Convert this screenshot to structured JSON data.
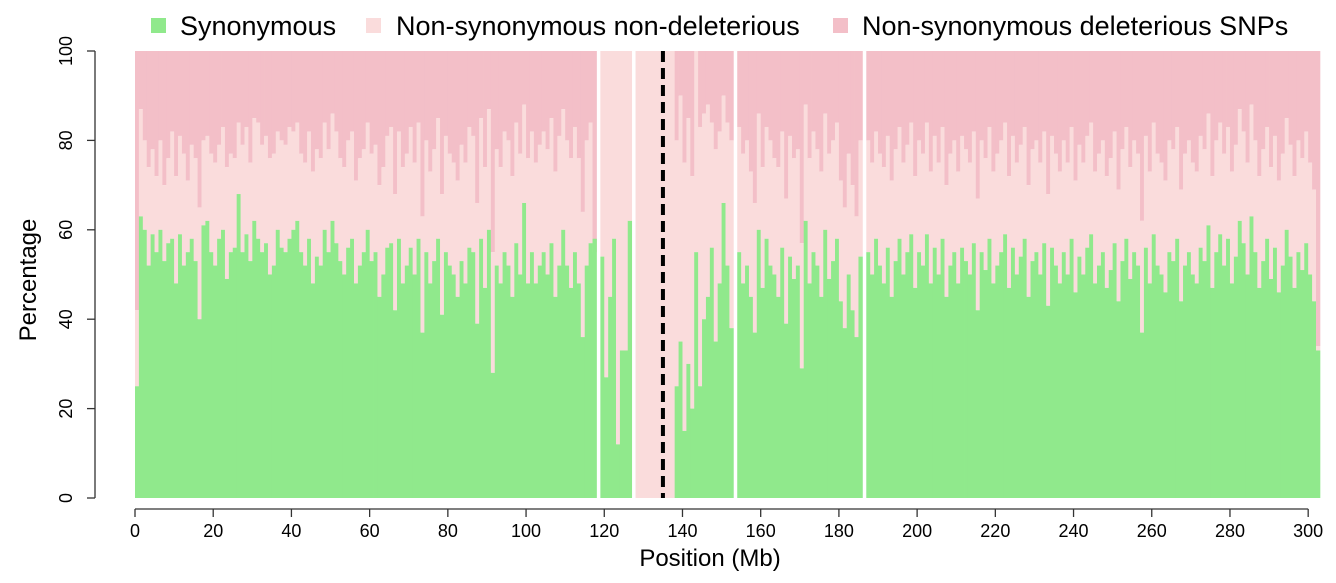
{
  "chart_data": {
    "type": "bar",
    "stacked": true,
    "percent_stacked": true,
    "xlabel": "Position (Mb)",
    "ylabel": "Percentage",
    "xlim": [
      0,
      302
    ],
    "ylim": [
      0,
      100
    ],
    "x_ticks": [
      "0",
      "20",
      "40",
      "60",
      "80",
      "100",
      "120",
      "140",
      "160",
      "180",
      "200",
      "220",
      "240",
      "260",
      "280",
      "300"
    ],
    "y_ticks": [
      "0",
      "20",
      "40",
      "60",
      "80",
      "100"
    ],
    "grid": false,
    "legend_position": "top",
    "bin_width_mb": 1,
    "marker_line_x": 135,
    "series": [
      {
        "name": "Synonymous",
        "color": "#90e98c"
      },
      {
        "name": "Non-synonymous non-deleterious",
        "color": "#fadcdc"
      },
      {
        "name": "Non-synonymous deleterious SNPs",
        "color": "#f3bfc8"
      }
    ],
    "segments": [
      {
        "x_start": 0,
        "x_end": 118,
        "synonymous": [
          25,
          63,
          60,
          52,
          59,
          55,
          60,
          53,
          57,
          58,
          48,
          59,
          52,
          55,
          58,
          53,
          40,
          61,
          62,
          55,
          52,
          58,
          60,
          49,
          55,
          56,
          68,
          55,
          59,
          53,
          62,
          58,
          55,
          57,
          50,
          52,
          60,
          56,
          55,
          58,
          60,
          62,
          55,
          52,
          58,
          48,
          54,
          52,
          60,
          55,
          62,
          57,
          53,
          50,
          56,
          58,
          48,
          52,
          55,
          60,
          53,
          55,
          45,
          50,
          56,
          57,
          42,
          58,
          48,
          52,
          56,
          50,
          58,
          37,
          55,
          48,
          53,
          58,
          41,
          55,
          52,
          50,
          45,
          53,
          48,
          56,
          55,
          39,
          58,
          47,
          60,
          28,
          52,
          48,
          55,
          52,
          45,
          57,
          50,
          66,
          48,
          55,
          48,
          52,
          55,
          50,
          57,
          45,
          52,
          60,
          52,
          47,
          55,
          48,
          36,
          52,
          57,
          58
        ],
        "non_deleterious": [
          42,
          87,
          80,
          74,
          78,
          72,
          80,
          70,
          76,
          82,
          72,
          81,
          77,
          71,
          79,
          76,
          65,
          80,
          81,
          77,
          75,
          79,
          83,
          74,
          77,
          76,
          84,
          79,
          83,
          75,
          85,
          84,
          79,
          81,
          76,
          77,
          82,
          80,
          79,
          83,
          82,
          84,
          77,
          75,
          82,
          73,
          78,
          76,
          84,
          78,
          86,
          82,
          76,
          74,
          80,
          82,
          71,
          76,
          78,
          84,
          77,
          79,
          70,
          74,
          81,
          83,
          68,
          82,
          74,
          77,
          83,
          75,
          84,
          63,
          80,
          73,
          78,
          85,
          68,
          81,
          77,
          75,
          71,
          79,
          75,
          83,
          81,
          66,
          85,
          74,
          87,
          55,
          78,
          74,
          82,
          80,
          72,
          84,
          77,
          88,
          76,
          82,
          75,
          79,
          82,
          78,
          85,
          73,
          81,
          87,
          80,
          76,
          83,
          76,
          64,
          80,
          84,
          55
        ]
      },
      {
        "x_start": 119,
        "x_end": 127,
        "synonymous": [
          54,
          27,
          45,
          58,
          12,
          33,
          33,
          62
        ],
        "non_deleterious": [
          100,
          100,
          100,
          100,
          100,
          100,
          100,
          100
        ]
      },
      {
        "x_start": 128,
        "x_end": 153,
        "synonymous": [
          0,
          0,
          0,
          0,
          0,
          0,
          0,
          0,
          0,
          0,
          25,
          35,
          15,
          30,
          20,
          55,
          25,
          40,
          45,
          56,
          35,
          48,
          66,
          52,
          38
        ],
        "non_deleterious": [
          100,
          100,
          100,
          100,
          100,
          100,
          100,
          100,
          100,
          100,
          80,
          90,
          75,
          85,
          72,
          100,
          83,
          86,
          88,
          84,
          78,
          82,
          90,
          84,
          80
        ]
      },
      {
        "x_start": 154,
        "x_end": 186,
        "synonymous": [
          55,
          48,
          52,
          45,
          37,
          60,
          47,
          58,
          52,
          50,
          45,
          56,
          39,
          54,
          49,
          52,
          29,
          62,
          48,
          55,
          52,
          45,
          60,
          49,
          53,
          58,
          44,
          38,
          50,
          42,
          36,
          54
        ],
        "non_deleterious": [
          83,
          77,
          80,
          73,
          66,
          86,
          74,
          83,
          80,
          76,
          74,
          82,
          67,
          81,
          76,
          78,
          57,
          88,
          76,
          82,
          78,
          73,
          86,
          77,
          80,
          84,
          71,
          65,
          77,
          70,
          63,
          80
        ]
      },
      {
        "x_start": 187,
        "x_end": 302,
        "synonymous": [
          55,
          50,
          58,
          52,
          48,
          56,
          45,
          53,
          58,
          50,
          55,
          59,
          47,
          55,
          52,
          59,
          48,
          56,
          50,
          58,
          45,
          52,
          55,
          48,
          56,
          53,
          50,
          57,
          42,
          55,
          51,
          58,
          48,
          52,
          55,
          59,
          47,
          56,
          50,
          54,
          58,
          45,
          53,
          55,
          50,
          57,
          43,
          56,
          52,
          48,
          55,
          50,
          58,
          46,
          54,
          50,
          56,
          59,
          48,
          52,
          55,
          47,
          51,
          57,
          44,
          53,
          58,
          49,
          55,
          52,
          37,
          56,
          48,
          59,
          52,
          50,
          46,
          55,
          53,
          58,
          44,
          52,
          55,
          50,
          48,
          56,
          53,
          61,
          47,
          55,
          59,
          52,
          58,
          48,
          54,
          62,
          57,
          50,
          63,
          55,
          47,
          53,
          58,
          49,
          56,
          46,
          52,
          60,
          54,
          47,
          55,
          51,
          57,
          50,
          44,
          33
        ],
        "non_deleterious": [
          80,
          75,
          82,
          77,
          74,
          81,
          71,
          78,
          83,
          75,
          79,
          84,
          72,
          80,
          77,
          84,
          73,
          81,
          75,
          83,
          70,
          77,
          80,
          73,
          81,
          78,
          75,
          82,
          67,
          80,
          76,
          83,
          73,
          77,
          80,
          84,
          72,
          81,
          75,
          79,
          83,
          70,
          78,
          80,
          75,
          82,
          68,
          81,
          77,
          73,
          80,
          75,
          83,
          71,
          79,
          75,
          81,
          84,
          73,
          77,
          80,
          72,
          76,
          82,
          69,
          78,
          83,
          74,
          80,
          77,
          62,
          81,
          73,
          84,
          77,
          75,
          71,
          80,
          78,
          83,
          69,
          77,
          80,
          75,
          73,
          81,
          78,
          86,
          72,
          80,
          84,
          77,
          83,
          73,
          79,
          87,
          82,
          75,
          88,
          80,
          72,
          78,
          83,
          74,
          81,
          71,
          77,
          85,
          79,
          72,
          80,
          76,
          82,
          75,
          69,
          34
        ]
      }
    ]
  }
}
